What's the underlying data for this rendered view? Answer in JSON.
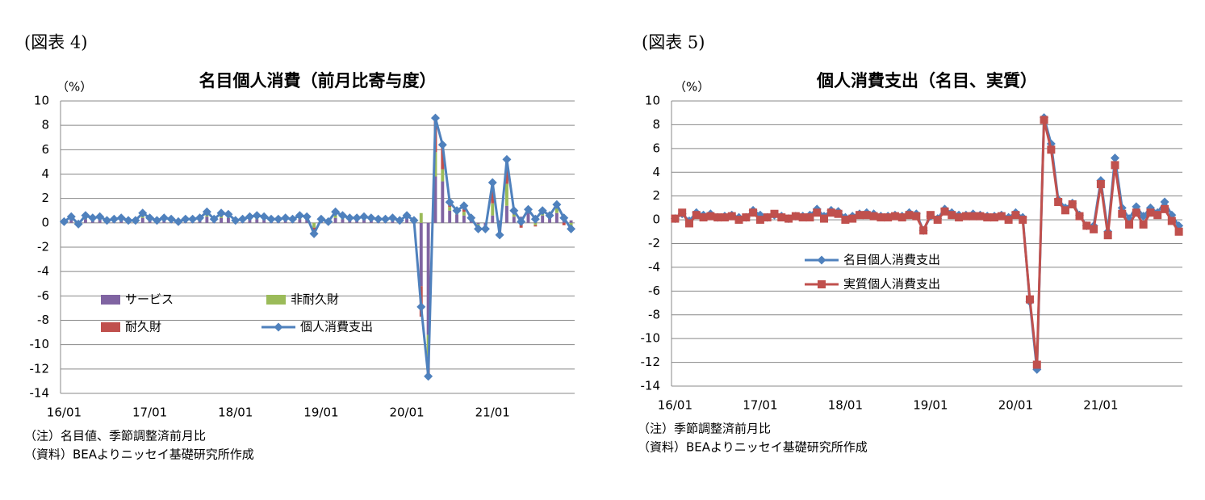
{
  "chart_data": [
    {
      "type": "combo",
      "figure_label": "(図表 4)",
      "title": "名目個人消費（前月比寄与度）",
      "y_unit": "（%）",
      "notes": [
        "（注）名目値、季節調整済前月比",
        "（資料）BEAよりニッセイ基礎研究所作成"
      ],
      "categories": [
        "16/01",
        null,
        null,
        null,
        null,
        null,
        null,
        null,
        null,
        null,
        null,
        null,
        "17/01",
        null,
        null,
        null,
        null,
        null,
        null,
        null,
        null,
        null,
        null,
        null,
        "18/01",
        null,
        null,
        null,
        null,
        null,
        null,
        null,
        null,
        null,
        null,
        null,
        "19/01",
        null,
        null,
        null,
        null,
        null,
        null,
        null,
        null,
        null,
        null,
        null,
        "20/01",
        null,
        null,
        null,
        null,
        null,
        null,
        null,
        null,
        null,
        null,
        null,
        "21/01",
        null,
        null,
        null,
        null,
        null,
        null,
        null,
        null,
        null,
        null,
        null
      ],
      "ylim": [
        -14,
        10
      ],
      "yticks": [
        10,
        8,
        6,
        4,
        2,
        0,
        -2,
        -4,
        -6,
        -8,
        -10,
        -12,
        -14
      ],
      "grid": true,
      "stacked": true,
      "legend": "lower-left",
      "series": [
        {
          "name": "サービス",
          "kind": "bar",
          "color": "#8064a2",
          "values": [
            0.2,
            0.3,
            0.1,
            0.3,
            0.3,
            0.3,
            0.2,
            0.2,
            0.3,
            0.2,
            0.2,
            0.4,
            0.3,
            0.2,
            0.3,
            0.2,
            0.1,
            0.2,
            0.2,
            0.3,
            0.5,
            0.2,
            0.4,
            0.4,
            0.2,
            0.2,
            0.3,
            0.3,
            0.3,
            0.2,
            0.2,
            0.3,
            0.2,
            0.3,
            0.3,
            0.0,
            0.2,
            0.2,
            0.4,
            0.3,
            0.2,
            0.2,
            0.3,
            0.2,
            0.2,
            0.2,
            0.2,
            0.2,
            0.4,
            0.2,
            -5.2,
            -9.2,
            3.8,
            3.4,
            1.0,
            0.7,
            0.6,
            0.3,
            -0.1,
            -0.3,
            0.6,
            0.2,
            1.4,
            0.5,
            0.5,
            0.8,
            0.6,
            0.6,
            0.4,
            0.8,
            0.5,
            0.2
          ]
        },
        {
          "name": "非耐久財",
          "kind": "bar",
          "color": "#9bbb59",
          "values": [
            0.0,
            0.1,
            -0.1,
            0.2,
            0.1,
            0.1,
            0.0,
            0.0,
            0.1,
            0.0,
            0.0,
            0.2,
            0.1,
            0.0,
            0.1,
            0.1,
            0.0,
            0.0,
            0.1,
            0.1,
            0.2,
            0.0,
            0.2,
            0.2,
            0.0,
            0.1,
            0.1,
            0.1,
            0.1,
            0.1,
            0.0,
            0.1,
            0.0,
            0.1,
            0.1,
            -0.4,
            0.1,
            -0.1,
            0.3,
            0.2,
            0.1,
            0.1,
            0.1,
            0.1,
            0.0,
            0.1,
            0.1,
            0.0,
            0.1,
            0.0,
            0.8,
            -1.8,
            2.0,
            1.0,
            0.3,
            0.1,
            0.3,
            0.0,
            -0.3,
            -0.1,
            1.0,
            -0.5,
            1.8,
            0.2,
            0.0,
            0.2,
            -0.2,
            0.3,
            0.1,
            0.4,
            0.1,
            -0.3
          ]
        },
        {
          "name": "耐久財",
          "kind": "bar",
          "color": "#c0504d",
          "values": [
            -0.1,
            0.1,
            -0.1,
            0.1,
            0.0,
            0.1,
            0.0,
            0.1,
            0.0,
            0.0,
            0.0,
            0.2,
            0.0,
            0.0,
            0.0,
            0.0,
            0.0,
            0.1,
            0.0,
            0.0,
            0.2,
            0.1,
            0.2,
            0.1,
            0.0,
            0.0,
            0.1,
            0.2,
            0.1,
            0.0,
            0.1,
            0.0,
            0.1,
            0.2,
            0.1,
            -0.5,
            0.0,
            0.0,
            0.2,
            0.1,
            0.1,
            0.1,
            0.1,
            0.1,
            0.1,
            0.0,
            0.1,
            0.0,
            0.1,
            0.0,
            -2.5,
            -1.6,
            2.8,
            2.0,
            0.4,
            0.2,
            0.5,
            0.1,
            -0.1,
            -0.1,
            1.7,
            -0.7,
            2.0,
            0.3,
            -0.4,
            0.1,
            -0.1,
            0.1,
            0.1,
            0.3,
            -0.2,
            -0.4
          ]
        },
        {
          "name": "個人消費支出",
          "kind": "line",
          "marker": "diamond",
          "color": "#4f81bd",
          "values": [
            0.1,
            0.5,
            -0.1,
            0.6,
            0.4,
            0.5,
            0.2,
            0.3,
            0.4,
            0.2,
            0.2,
            0.8,
            0.4,
            0.2,
            0.4,
            0.3,
            0.1,
            0.3,
            0.3,
            0.4,
            0.9,
            0.3,
            0.8,
            0.7,
            0.2,
            0.3,
            0.5,
            0.6,
            0.5,
            0.3,
            0.3,
            0.4,
            0.3,
            0.6,
            0.5,
            -0.9,
            0.3,
            0.1,
            0.9,
            0.6,
            0.4,
            0.4,
            0.5,
            0.4,
            0.3,
            0.3,
            0.4,
            0.2,
            0.6,
            0.2,
            -6.9,
            -12.6,
            8.6,
            6.4,
            1.7,
            1.0,
            1.4,
            0.4,
            -0.5,
            -0.5,
            3.3,
            -1.0,
            5.2,
            1.0,
            0.1,
            1.1,
            0.3,
            1.0,
            0.6,
            1.5,
            0.4,
            -0.5
          ]
        }
      ]
    },
    {
      "type": "line",
      "figure_label": "(図表 5)",
      "title": "個人消費支出（名目、実質）",
      "y_unit": "（%）",
      "notes": [
        "（注）季節調整済前月比",
        "（資料）BEAよりニッセイ基礎研究所作成"
      ],
      "categories": [
        "16/01",
        null,
        null,
        null,
        null,
        null,
        null,
        null,
        null,
        null,
        null,
        null,
        "17/01",
        null,
        null,
        null,
        null,
        null,
        null,
        null,
        null,
        null,
        null,
        null,
        "18/01",
        null,
        null,
        null,
        null,
        null,
        null,
        null,
        null,
        null,
        null,
        null,
        "19/01",
        null,
        null,
        null,
        null,
        null,
        null,
        null,
        null,
        null,
        null,
        null,
        "20/01",
        null,
        null,
        null,
        null,
        null,
        null,
        null,
        null,
        null,
        null,
        null,
        "21/01",
        null,
        null,
        null,
        null,
        null,
        null,
        null,
        null,
        null,
        null,
        null
      ],
      "ylim": [
        -14,
        10
      ],
      "yticks": [
        10,
        8,
        6,
        4,
        2,
        0,
        -2,
        -4,
        -6,
        -8,
        -10,
        -12,
        -14
      ],
      "grid": true,
      "legend": "center",
      "series": [
        {
          "name": "名目個人消費支出",
          "kind": "line",
          "marker": "diamond",
          "color": "#4f81bd",
          "values": [
            0.1,
            0.5,
            -0.1,
            0.6,
            0.4,
            0.5,
            0.2,
            0.3,
            0.4,
            0.2,
            0.2,
            0.8,
            0.4,
            0.2,
            0.4,
            0.3,
            0.1,
            0.3,
            0.3,
            0.4,
            0.9,
            0.3,
            0.8,
            0.7,
            0.2,
            0.3,
            0.5,
            0.6,
            0.5,
            0.3,
            0.3,
            0.4,
            0.3,
            0.6,
            0.5,
            -0.9,
            0.3,
            0.1,
            0.9,
            0.6,
            0.4,
            0.4,
            0.5,
            0.4,
            0.3,
            0.3,
            0.4,
            0.2,
            0.6,
            0.2,
            -6.9,
            -12.6,
            8.6,
            6.4,
            1.7,
            1.0,
            1.4,
            0.4,
            -0.5,
            -0.5,
            3.3,
            -1.0,
            5.2,
            1.0,
            0.1,
            1.1,
            0.3,
            1.0,
            0.6,
            1.5,
            0.4,
            -0.5
          ]
        },
        {
          "name": "実質個人消費支出",
          "kind": "line",
          "marker": "square",
          "color": "#c0504d",
          "values": [
            0.1,
            0.6,
            -0.3,
            0.4,
            0.2,
            0.3,
            0.2,
            0.2,
            0.3,
            0.0,
            0.2,
            0.6,
            0.0,
            0.2,
            0.5,
            0.2,
            0.1,
            0.3,
            0.2,
            0.2,
            0.6,
            0.1,
            0.6,
            0.5,
            0.0,
            0.1,
            0.4,
            0.4,
            0.3,
            0.2,
            0.2,
            0.3,
            0.2,
            0.4,
            0.3,
            -0.9,
            0.4,
            0.0,
            0.7,
            0.4,
            0.2,
            0.3,
            0.3,
            0.3,
            0.2,
            0.2,
            0.3,
            0.0,
            0.4,
            0.0,
            -6.7,
            -12.2,
            8.4,
            5.9,
            1.5,
            0.8,
            1.3,
            0.3,
            -0.5,
            -0.8,
            3.0,
            -1.3,
            4.6,
            0.5,
            -0.4,
            0.6,
            -0.4,
            0.6,
            0.4,
            0.9,
            -0.1,
            -1.0
          ]
        }
      ]
    }
  ]
}
